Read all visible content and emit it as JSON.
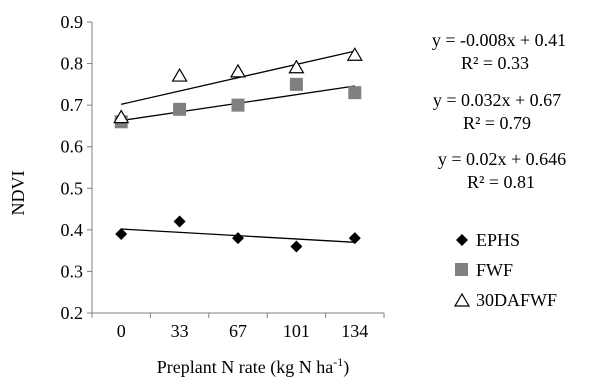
{
  "chart_data": {
    "type": "scatter",
    "title": "",
    "xlabel": "Preplant N rate (kg N ha",
    "xlabel_sup": "-1",
    "xlabel_close": ")",
    "ylabel": "NDVI",
    "categories": [
      "0",
      "33",
      "67",
      "101",
      "134"
    ],
    "ylim": [
      0.2,
      0.9
    ],
    "yticks": [
      "0.2",
      "0.3",
      "0.4",
      "0.5",
      "0.6",
      "0.7",
      "0.8",
      "0.9"
    ],
    "grid": false,
    "legend_position": "right",
    "series": [
      {
        "name": "EPHS",
        "marker": "diamond",
        "color": "#000000",
        "values": [
          0.39,
          0.42,
          0.38,
          0.36,
          0.38
        ],
        "trendline": {
          "start": 0.402,
          "end": 0.37
        },
        "equation": "y = 0.02x + 0.646",
        "r2": "R² = 0.81"
      },
      {
        "name": "FWF",
        "marker": "square",
        "color": "#808080",
        "values": [
          0.66,
          0.69,
          0.7,
          0.75,
          0.73
        ],
        "trendline": {
          "start": 0.663,
          "end": 0.746
        },
        "equation": "y = 0.032x + 0.67",
        "r2": "R² = 0.79"
      },
      {
        "name": "30DAFWF",
        "marker": "triangle-open",
        "color": "#000000",
        "values": [
          0.67,
          0.77,
          0.78,
          0.79,
          0.82
        ],
        "trendline": {
          "start": 0.702,
          "end": 0.83
        },
        "equation": "y = -0.008x + 0.41",
        "r2": "R² = 0.33"
      }
    ]
  }
}
